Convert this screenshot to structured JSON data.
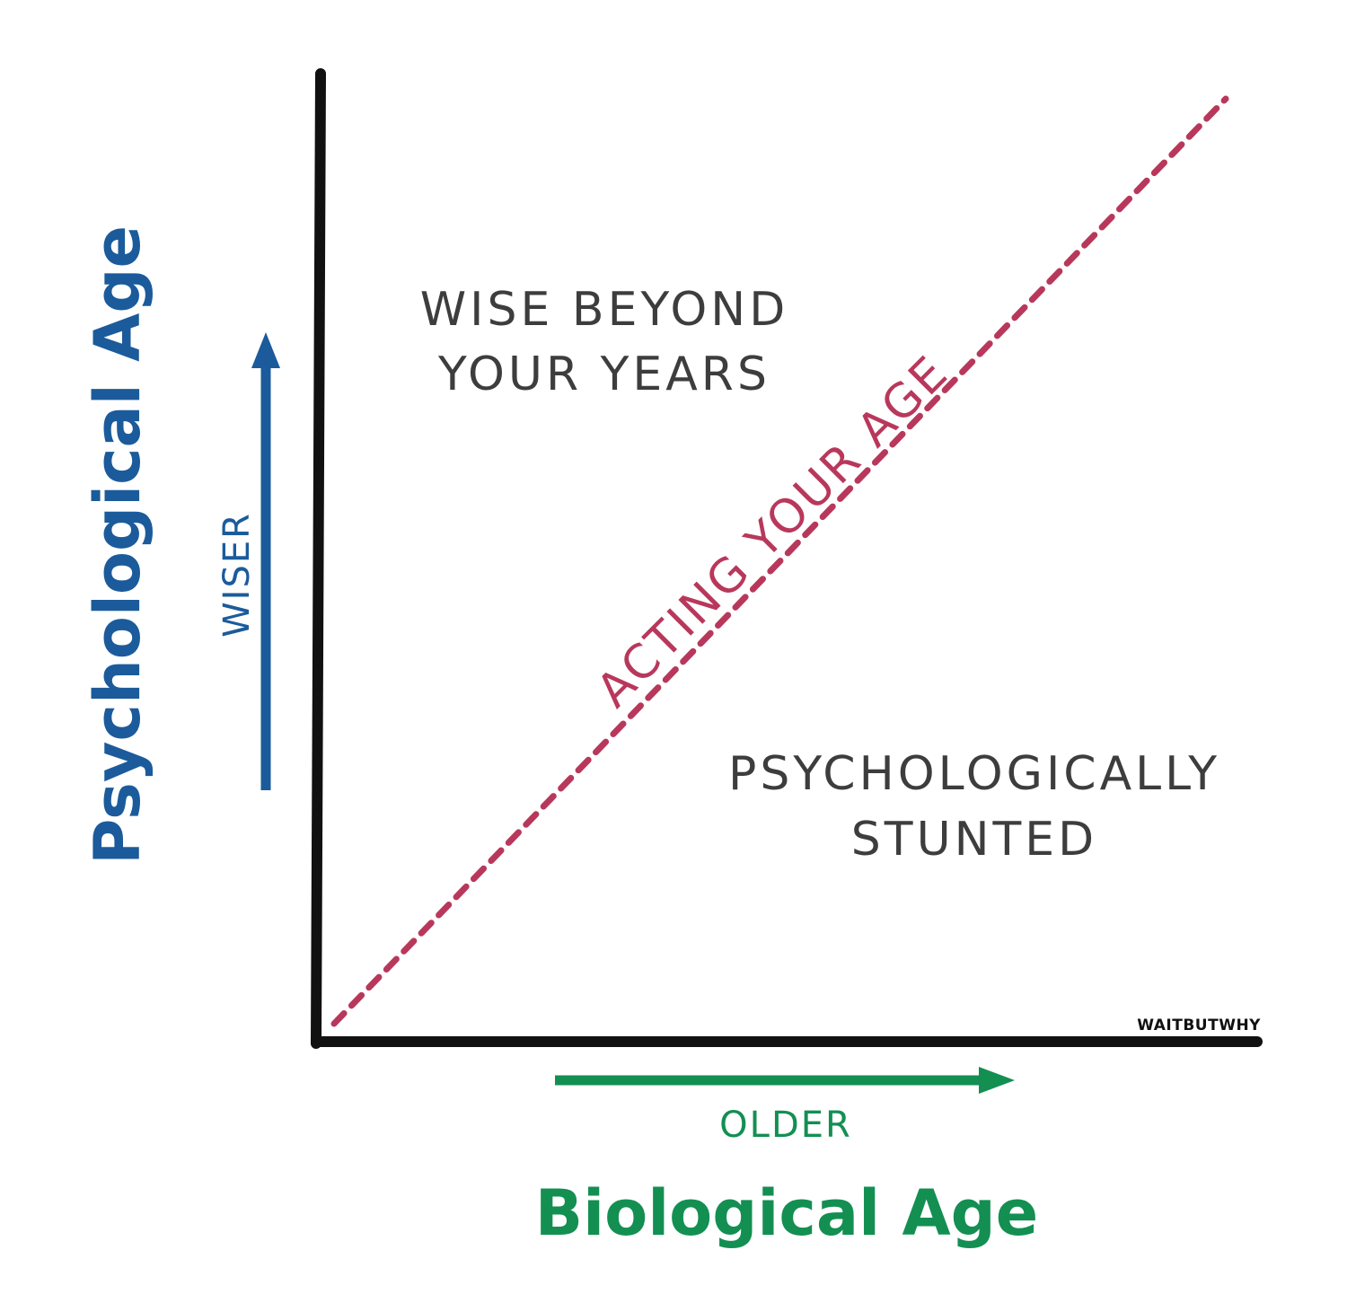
{
  "diagram": {
    "regions": {
      "upper_left": {
        "line1": "WISE BEYOND",
        "line2": "YOUR YEARS"
      },
      "lower_right": {
        "line1": "PSYCHOLOGICALLY",
        "line2": "STUNTED"
      }
    },
    "diagonal_label": "ACTING YOUR AGE",
    "y_axis": {
      "title": "Psychological Age",
      "direction": "WISER"
    },
    "x_axis": {
      "title": "Biological Age",
      "direction": "OLDER"
    },
    "watermark": "WAITBUTWHY",
    "colors": {
      "axis": "#111111",
      "region_text": "#3d3d3d",
      "y_accent": "#1b5b9b",
      "x_accent": "#138f52",
      "diagonal": "#b8385c"
    },
    "icons": {
      "y_direction": "arrow-up-icon",
      "x_direction": "arrow-right-icon"
    }
  }
}
